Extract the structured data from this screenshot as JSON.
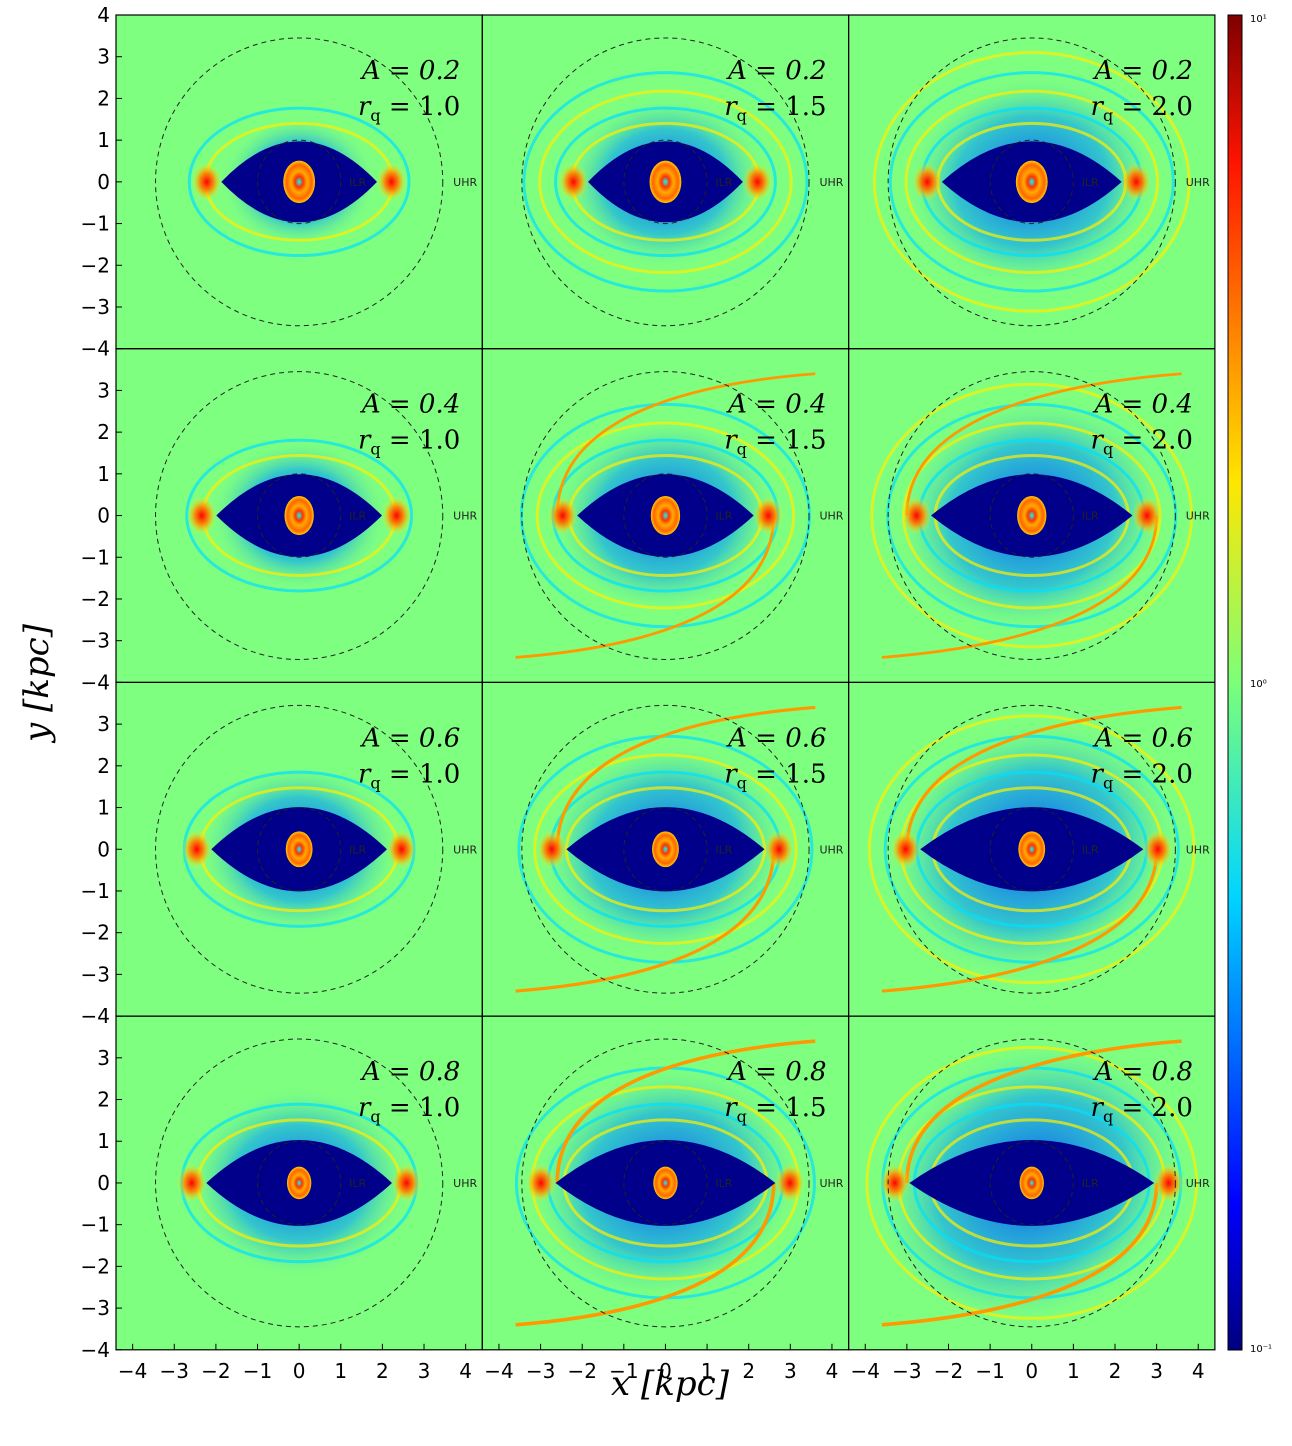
{
  "chart_data": {
    "type": "heatmap",
    "xlabel": "x [kpc]",
    "ylabel": "y [kpc]",
    "xlim": [
      -4.4,
      4.4
    ],
    "ylim": [
      -4,
      4
    ],
    "x_ticks": [
      "−4",
      "−3",
      "−2",
      "−1",
      "0",
      "1",
      "2",
      "3",
      "4"
    ],
    "y_ticks": [
      "−4",
      "−3",
      "−2",
      "−1",
      "0",
      "1",
      "2",
      "3",
      "4"
    ],
    "colorbar": {
      "scale": "log",
      "range": [
        0.1,
        10
      ],
      "ticks": [
        "10⁻¹",
        "10⁰",
        "10¹"
      ],
      "colormap": "jet"
    },
    "resonance_labels": {
      "inner": "ILR",
      "outer": "UHR"
    },
    "circle_radii_kpc": {
      "inner": 1.0,
      "outer": 3.45
    },
    "rows": [
      {
        "A_label": "A = 0.2",
        "A": 0.2
      },
      {
        "A_label": "A = 0.4",
        "A": 0.4
      },
      {
        "A_label": "A = 0.6",
        "A": 0.6
      },
      {
        "A_label": "A = 0.8",
        "A": 0.8
      }
    ],
    "columns": [
      {
        "rq_label": "r q = 1.0",
        "rq": 1.0
      },
      {
        "rq_label": "r q = 1.5",
        "rq": 1.5
      },
      {
        "rq_label": "r q = 2.0",
        "rq": 2.0
      }
    ],
    "panels": [
      {
        "A": 0.2,
        "rq": 1.0,
        "A_text": "A = 0.2",
        "rq_text": "1.0"
      },
      {
        "A": 0.2,
        "rq": 1.5,
        "A_text": "A = 0.2",
        "rq_text": "1.5"
      },
      {
        "A": 0.2,
        "rq": 2.0,
        "A_text": "A = 0.2",
        "rq_text": "2.0"
      },
      {
        "A": 0.4,
        "rq": 1.0,
        "A_text": "A = 0.4",
        "rq_text": "1.0"
      },
      {
        "A": 0.4,
        "rq": 1.5,
        "A_text": "A = 0.4",
        "rq_text": "1.5"
      },
      {
        "A": 0.4,
        "rq": 2.0,
        "A_text": "A = 0.4",
        "rq_text": "2.0"
      },
      {
        "A": 0.6,
        "rq": 1.0,
        "A_text": "A = 0.6",
        "rq_text": "1.0"
      },
      {
        "A": 0.6,
        "rq": 1.5,
        "A_text": "A = 0.6",
        "rq_text": "1.5"
      },
      {
        "A": 0.6,
        "rq": 2.0,
        "A_text": "A = 0.6",
        "rq_text": "2.0"
      },
      {
        "A": 0.8,
        "rq": 1.0,
        "A_text": "A = 0.8",
        "rq_text": "1.0"
      },
      {
        "A": 0.8,
        "rq": 1.5,
        "A_text": "A = 0.8",
        "rq_text": "1.5"
      },
      {
        "A": 0.8,
        "rq": 2.0,
        "A_text": "A = 0.8",
        "rq_text": "2.0"
      }
    ]
  }
}
